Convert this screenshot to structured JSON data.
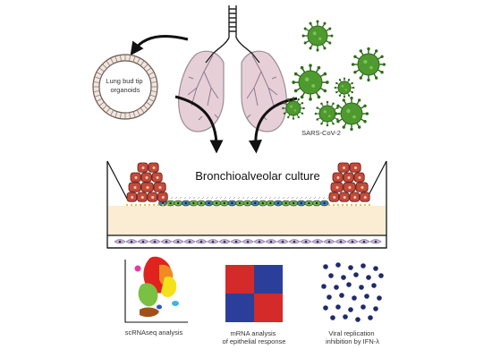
{
  "organoid_label": [
    "Lung bud tip",
    "organoids"
  ],
  "virus_label": "SARS-CoV-2",
  "culture_title": "Bronchioalveolar culture",
  "panels": [
    {
      "id": "scrnaseq",
      "caption": [
        "scRNAseq analysis"
      ]
    },
    {
      "id": "mrna",
      "caption": [
        "mRNA analysis",
        "of epithelial response"
      ]
    },
    {
      "id": "viral",
      "caption": [
        "Viral replication",
        "inhibition by IFN-λ"
      ]
    }
  ],
  "colors": {
    "lung_pink": "#e7cfd8",
    "lung_outline": "#9a8d95",
    "virus_green": "#4e9a2f",
    "virus_dark": "#2f6b1a",
    "organoid_cell": "#f1e6de",
    "cell_red": "#c44a3a",
    "matrix": "#faedd3",
    "heatmap_red": "#d42a2a",
    "heatmap_blue": "#2b3f9a",
    "dot_navy": "#1f2a6b"
  }
}
